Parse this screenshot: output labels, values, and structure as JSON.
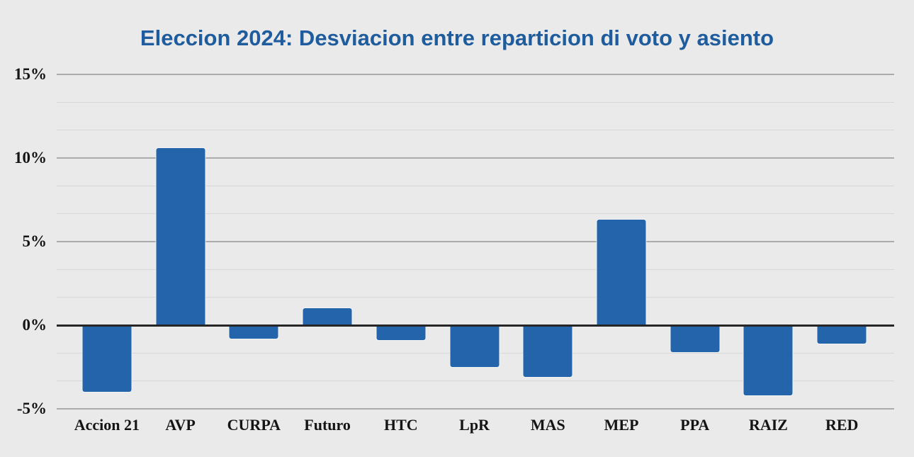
{
  "page": {
    "background_color": "#eaeaea"
  },
  "chart_data": {
    "type": "bar",
    "title": "Eleccion 2024: Desviacion entre reparticion di voto y asiento",
    "title_color": "#1e5c9e",
    "categories": [
      "Accion 21",
      "AVP",
      "CURPA",
      "Futuro",
      "HTC",
      "LpR",
      "MAS",
      "MEP",
      "PPA",
      "RAIZ",
      "RED"
    ],
    "values": [
      -4.0,
      10.6,
      -0.8,
      1.0,
      -0.9,
      -2.5,
      -3.1,
      6.3,
      -1.6,
      -4.2,
      -1.1
    ],
    "unit": "%",
    "xlabel": "",
    "ylabel": "",
    "ylim": [
      -5,
      15
    ],
    "yticks": [
      {
        "value": 15,
        "label": "15%"
      },
      {
        "value": 10,
        "label": "10%"
      },
      {
        "value": 5,
        "label": "5%"
      },
      {
        "value": 0,
        "label": "0%"
      },
      {
        "value": -5,
        "label": "-5%"
      }
    ],
    "minor_grid_step": 1.6666667,
    "grid": true,
    "legend": null,
    "bar_color": "#2364aa",
    "zero_line_color": "#262626",
    "major_grid_color": "#ababab",
    "minor_grid_color": "#d7d7d7",
    "tick_label_color": "#141414"
  }
}
